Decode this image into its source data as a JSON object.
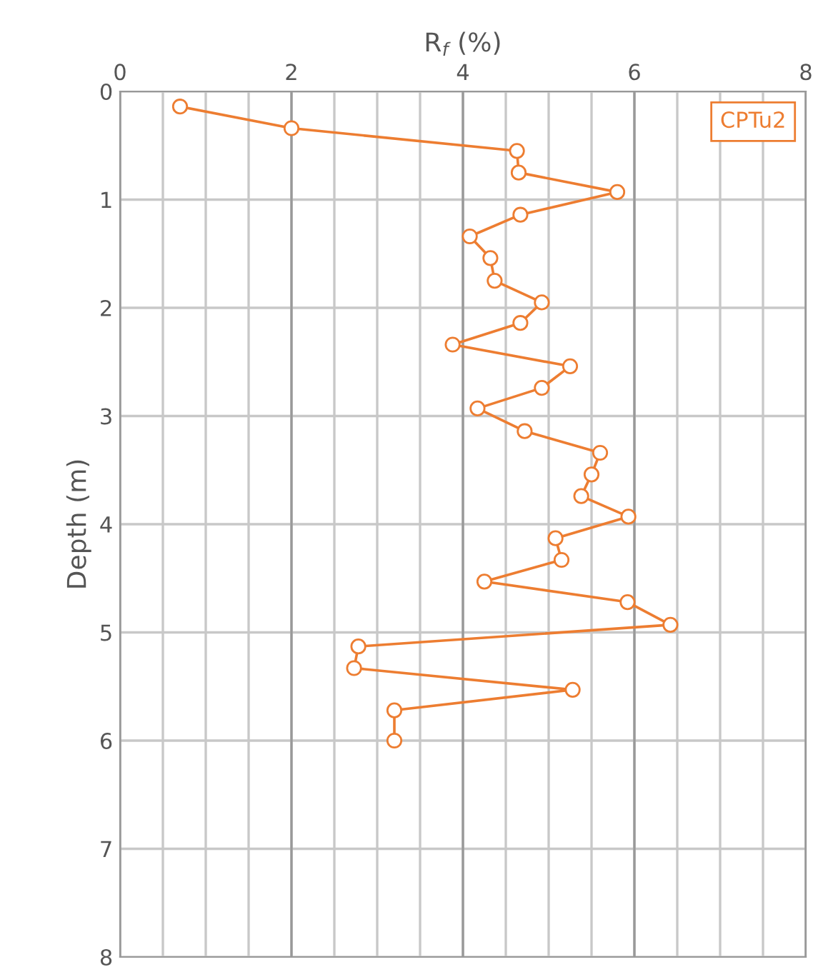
{
  "chart_data": {
    "type": "line",
    "xlabel": "R$_{f}$ (%)",
    "ylabel": "Depth (m)",
    "series": [
      {
        "name": "CPTu2",
        "color": "#ed7d31",
        "x": [
          0.7,
          2.0,
          4.63,
          4.65,
          5.8,
          4.67,
          4.08,
          4.32,
          4.37,
          4.92,
          4.67,
          3.88,
          5.25,
          4.92,
          4.17,
          4.72,
          5.6,
          5.5,
          5.38,
          5.93,
          5.08,
          5.15,
          4.25,
          5.92,
          6.42,
          2.78,
          2.73,
          5.28,
          3.2,
          3.2
        ],
        "values": [
          0.14,
          0.34,
          0.55,
          0.75,
          0.93,
          1.14,
          1.34,
          1.54,
          1.75,
          1.95,
          2.14,
          2.34,
          2.54,
          2.74,
          2.93,
          3.14,
          3.34,
          3.54,
          3.74,
          3.93,
          4.13,
          4.33,
          4.53,
          4.72,
          4.93,
          5.13,
          5.33,
          5.53,
          5.72,
          6.0
        ]
      }
    ],
    "xlim": [
      0,
      8
    ],
    "ylim": [
      8,
      0
    ],
    "xticks": [
      0,
      {
        "value": 0.5,
        "label": null
      },
      {
        "value": 1,
        "label": null
      },
      {
        "value": 1.5,
        "label": null
      },
      2,
      {
        "value": 2.5,
        "label": null
      },
      {
        "value": 3,
        "label": null
      },
      {
        "value": 3.5,
        "label": null
      },
      4,
      {
        "value": 4.5,
        "label": null
      },
      {
        "value": 5,
        "label": null
      },
      {
        "value": 5.5,
        "label": null
      },
      6,
      {
        "value": 6.5,
        "label": null
      },
      {
        "value": 7,
        "label": null
      },
      {
        "value": 7.5,
        "label": null
      },
      8
    ],
    "yticks": [
      0,
      1,
      2,
      3,
      4,
      5,
      6,
      7,
      8
    ],
    "grid": true,
    "legend": "top right",
    "marker": "circle",
    "line_style": "solid"
  }
}
